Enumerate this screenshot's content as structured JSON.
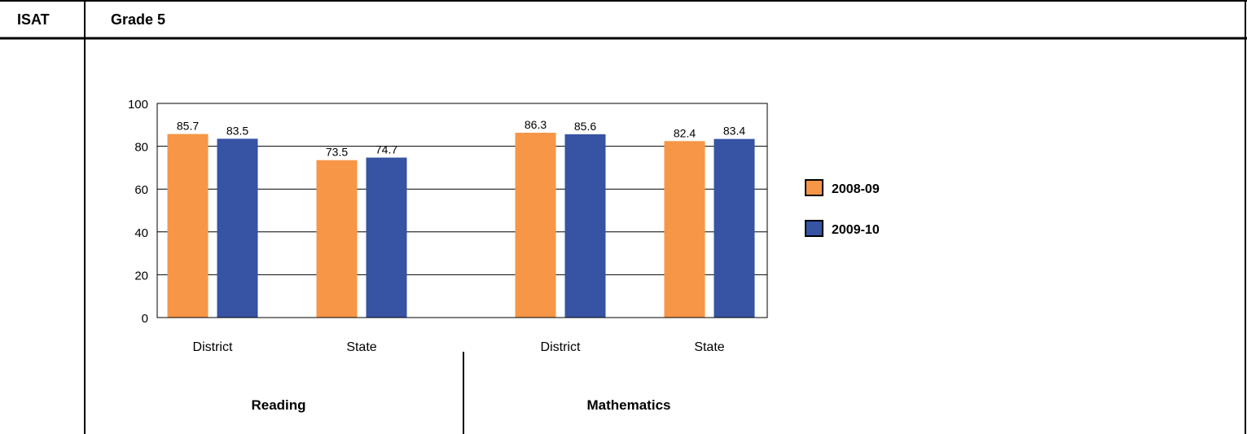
{
  "header": {
    "left_label": "ISAT",
    "right_label": "Grade 5"
  },
  "chart_data": {
    "type": "bar",
    "ylim": [
      0,
      100
    ],
    "yticks": [
      0,
      20,
      40,
      60,
      80,
      100
    ],
    "grid": true,
    "legend_position": "right",
    "groups": [
      {
        "subject": "Reading",
        "category": "District",
        "values": [
          85.7,
          83.5
        ]
      },
      {
        "subject": "Reading",
        "category": "State",
        "values": [
          73.5,
          74.7
        ]
      },
      {
        "subject": "Mathematics",
        "category": "District",
        "values": [
          86.3,
          85.6
        ]
      },
      {
        "subject": "Mathematics",
        "category": "State",
        "values": [
          82.4,
          83.4
        ]
      }
    ],
    "subjects": [
      "Reading",
      "Mathematics"
    ],
    "series": [
      {
        "name": "2008-09",
        "color": "#f79646"
      },
      {
        "name": "2009-10",
        "color": "#3653a4"
      }
    ]
  }
}
